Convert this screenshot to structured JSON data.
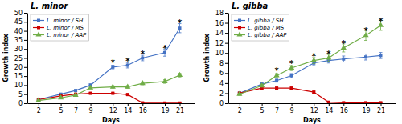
{
  "chart_data": [
    {
      "type": "line",
      "title": "L. minor",
      "xlabel": "Days",
      "ylabel": "Growth index",
      "x": [
        2,
        5,
        7,
        9,
        12,
        14,
        16,
        19,
        21
      ],
      "xlim": [
        0.5,
        23
      ],
      "xticks": [
        2,
        5,
        7,
        9,
        12,
        14,
        16,
        19,
        21
      ],
      "ylim": [
        0,
        50
      ],
      "yticks": [
        0,
        5,
        10,
        15,
        20,
        25,
        30,
        35,
        40,
        45,
        50
      ],
      "grid": false,
      "legend": "upper left",
      "series": [
        {
          "name": "L. minor / SH",
          "color": "#4472c4",
          "marker": "square",
          "values": [
            2.0,
            5.0,
            7.0,
            10.0,
            20.0,
            21.0,
            25.0,
            28.0,
            41.5
          ],
          "errors": [
            0.3,
            0.4,
            0.5,
            0.7,
            1.0,
            1.5,
            1.5,
            2.0,
            2.5
          ]
        },
        {
          "name": "L. minor / MS",
          "color": "#cc0000",
          "marker": "square",
          "values": [
            2.0,
            4.0,
            5.0,
            5.5,
            5.5,
            4.8,
            0.2,
            0.1,
            0.1
          ],
          "errors": [
            0.2,
            0.3,
            0.3,
            0.4,
            0.4,
            0.4,
            0.1,
            0.1,
            0.1
          ]
        },
        {
          "name": "L. minor / AAP",
          "color": "#70ad47",
          "marker": "triangle",
          "values": [
            1.5,
            3.0,
            4.5,
            8.5,
            9.0,
            9.0,
            11.0,
            12.0,
            15.5
          ],
          "errors": [
            0.2,
            0.3,
            0.4,
            0.5,
            0.6,
            0.7,
            0.8,
            1.0,
            1.0
          ]
        }
      ],
      "annotations": [
        {
          "x": 12,
          "y": 20.0,
          "text": "*"
        },
        {
          "x": 14,
          "y": 21.0,
          "text": "*"
        },
        {
          "x": 16,
          "y": 25.0,
          "text": "*"
        },
        {
          "x": 19,
          "y": 28.0,
          "text": "*"
        },
        {
          "x": 21,
          "y": 42.0,
          "text": "*"
        }
      ]
    },
    {
      "type": "line",
      "title": "L. gibba",
      "xlabel": "Days",
      "ylabel": "Growth index",
      "x": [
        2,
        5,
        7,
        9,
        12,
        14,
        16,
        19,
        21
      ],
      "xlim": [
        0.5,
        23
      ],
      "xticks": [
        2,
        5,
        7,
        9,
        12,
        14,
        16,
        19,
        21
      ],
      "ylim": [
        0,
        18
      ],
      "yticks": [
        0,
        2,
        4,
        6,
        8,
        10,
        12,
        14,
        16,
        18
      ],
      "grid": false,
      "legend": "upper left",
      "series": [
        {
          "name": "L. gibba / SH",
          "color": "#4472c4",
          "marker": "square",
          "values": [
            2.0,
            3.8,
            4.5,
            5.5,
            8.0,
            8.5,
            8.8,
            9.2,
            9.5
          ],
          "errors": [
            0.2,
            0.3,
            0.3,
            0.4,
            0.5,
            0.5,
            0.6,
            0.6,
            0.6
          ]
        },
        {
          "name": "L. gibba / MS",
          "color": "#cc0000",
          "marker": "square",
          "values": [
            2.0,
            3.0,
            3.0,
            3.0,
            2.2,
            0.2,
            0.1,
            0.1,
            0.1
          ],
          "errors": [
            0.1,
            0.2,
            0.2,
            0.2,
            0.2,
            0.1,
            0.05,
            0.05,
            0.05
          ]
        },
        {
          "name": "L. gibba / AAP",
          "color": "#70ad47",
          "marker": "triangle",
          "values": [
            1.8,
            3.5,
            5.5,
            7.0,
            8.5,
            9.0,
            11.0,
            13.5,
            15.5
          ],
          "errors": [
            0.2,
            0.3,
            0.4,
            0.5,
            0.6,
            0.7,
            0.8,
            1.0,
            1.0
          ]
        }
      ],
      "annotations": [
        {
          "x": 7,
          "y": 5.5,
          "text": "*"
        },
        {
          "x": 9,
          "y": 7.0,
          "text": "*"
        },
        {
          "x": 12,
          "y": 8.5,
          "text": "*"
        },
        {
          "x": 14,
          "y": 9.0,
          "text": "*"
        },
        {
          "x": 16,
          "y": 11.0,
          "text": "*"
        },
        {
          "x": 19,
          "y": 13.5,
          "text": "*"
        },
        {
          "x": 21,
          "y": 15.5,
          "text": "*"
        }
      ]
    }
  ]
}
